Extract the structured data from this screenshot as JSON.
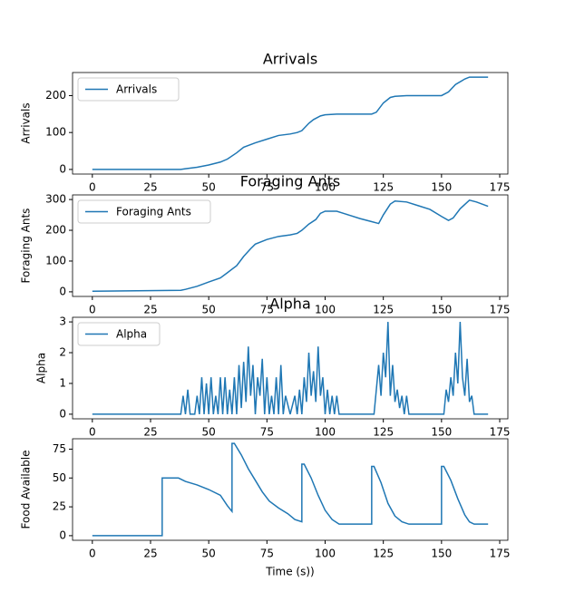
{
  "chart_data": [
    {
      "type": "line",
      "title": "Arrivals",
      "ylabel": "Arrivals",
      "x": [
        0,
        38,
        40,
        45,
        50,
        55,
        58,
        62,
        65,
        70,
        75,
        80,
        85,
        88,
        90,
        93,
        95,
        98,
        100,
        105,
        120,
        122,
        125,
        128,
        130,
        135,
        150,
        153,
        156,
        160,
        162,
        170
      ],
      "series": [
        {
          "name": "Arrivals",
          "color": "#1f77b4",
          "values": [
            0,
            0,
            2,
            6,
            12,
            20,
            28,
            45,
            60,
            72,
            82,
            92,
            96,
            100,
            105,
            125,
            135,
            145,
            148,
            150,
            150,
            155,
            180,
            195,
            198,
            200,
            200,
            210,
            230,
            245,
            250,
            250
          ]
        }
      ],
      "xlim": [
        -8.5,
        178.5
      ],
      "xticks": [
        0,
        25,
        50,
        75,
        100,
        125,
        150,
        175
      ],
      "ylim": [
        -12.5,
        262.5
      ],
      "yticks": [
        0,
        100,
        200
      ],
      "legend": "upper left"
    },
    {
      "type": "line",
      "title": "Foraging Ants",
      "ylabel": "Foraging Ants",
      "x": [
        0,
        38,
        40,
        45,
        50,
        55,
        58,
        62,
        65,
        68,
        70,
        75,
        80,
        85,
        88,
        90,
        93,
        96,
        98,
        100,
        105,
        110,
        115,
        120,
        123,
        125,
        128,
        130,
        135,
        140,
        145,
        150,
        153,
        155,
        158,
        162,
        165,
        170
      ],
      "series": [
        {
          "name": "Foraging Ants",
          "color": "#1f77b4",
          "values": [
            2,
            5,
            8,
            18,
            32,
            45,
            62,
            85,
            115,
            140,
            155,
            170,
            180,
            185,
            190,
            200,
            220,
            235,
            255,
            262,
            262,
            250,
            238,
            228,
            222,
            250,
            285,
            295,
            292,
            280,
            268,
            245,
            232,
            240,
            270,
            298,
            292,
            278
          ]
        }
      ],
      "xlim": [
        -8.5,
        178.5
      ],
      "xticks": [
        0,
        25,
        50,
        75,
        100,
        125,
        150,
        175
      ],
      "ylim": [
        -15,
        315
      ],
      "yticks": [
        0,
        100,
        200,
        300
      ],
      "legend": "upper left"
    },
    {
      "type": "line",
      "title": "Alpha",
      "ylabel": "Alpha",
      "x": [
        0,
        38,
        39,
        40,
        41,
        42,
        44,
        45,
        46,
        47,
        48,
        49,
        50,
        51,
        52,
        53,
        54,
        55,
        56,
        57,
        58,
        59,
        60,
        61,
        62,
        63,
        64,
        65,
        66,
        67,
        68,
        69,
        70,
        71,
        72,
        73,
        74,
        75,
        76,
        77,
        78,
        79,
        80,
        81,
        82,
        83,
        85,
        87,
        88,
        89,
        90,
        91,
        92,
        93,
        94,
        95,
        96,
        97,
        98,
        99,
        100,
        101,
        102,
        103,
        104,
        105,
        106,
        121,
        122,
        123,
        124,
        125,
        126,
        127,
        128,
        129,
        130,
        131,
        132,
        133,
        134,
        135,
        136,
        151,
        152,
        153,
        154,
        155,
        156,
        157,
        158,
        159,
        160,
        161,
        162,
        163,
        164,
        170
      ],
      "series": [
        {
          "name": "Alpha",
          "color": "#1f77b4",
          "values": [
            0,
            0,
            0.6,
            0,
            0.8,
            0,
            0,
            0.6,
            0,
            1.2,
            0,
            1,
            0,
            1.2,
            0,
            0.6,
            0,
            1.2,
            0,
            1.2,
            0,
            0.8,
            0,
            1.2,
            0,
            1.6,
            0.2,
            1.7,
            0.4,
            2.2,
            0.6,
            1.6,
            0,
            1.2,
            0.6,
            1.8,
            0,
            1.2,
            0,
            0.6,
            0,
            1.2,
            0,
            1.6,
            0,
            0.6,
            0,
            0.6,
            0,
            0.8,
            0,
            1.2,
            0.4,
            2,
            0.6,
            1.4,
            0.4,
            2.2,
            0.6,
            1.2,
            0,
            0.8,
            0,
            0.6,
            0,
            0.6,
            0,
            0,
            0.8,
            1.6,
            0.6,
            2,
            1.2,
            3,
            0.6,
            1.6,
            0.4,
            0.8,
            0.2,
            0.6,
            0,
            0.6,
            0,
            0,
            0.8,
            0.4,
            1.2,
            0.6,
            2,
            1,
            3,
            1.2,
            0.6,
            1.8,
            0.4,
            0.6,
            0,
            0
          ]
        }
      ],
      "xlim": [
        -8.5,
        178.5
      ],
      "xticks": [
        0,
        25,
        50,
        75,
        100,
        125,
        150,
        175
      ],
      "ylim": [
        -0.15,
        3.15
      ],
      "yticks": [
        0,
        1,
        2,
        3
      ],
      "legend": "upper left"
    },
    {
      "type": "line",
      "ylabel": "Food Available",
      "xlabel": "Time (s))",
      "x": [
        0,
        30,
        30,
        37,
        40,
        45,
        50,
        55,
        58,
        60,
        60,
        61,
        64,
        67,
        70,
        73,
        76,
        80,
        84,
        87,
        90,
        90,
        91,
        94,
        97,
        100,
        103,
        106,
        120,
        120,
        121,
        124,
        127,
        130,
        133,
        136,
        150,
        150,
        151,
        154,
        157,
        160,
        162,
        164,
        170
      ],
      "series": [
        {
          "name": "Food Available",
          "color": "#1f77b4",
          "values": [
            0,
            0,
            50,
            50,
            47,
            44,
            40,
            35,
            26,
            21,
            80,
            80,
            70,
            58,
            48,
            38,
            30,
            24,
            19,
            14,
            12,
            62,
            62,
            50,
            35,
            22,
            14,
            10,
            10,
            60,
            60,
            46,
            28,
            17,
            12,
            10,
            10,
            60,
            60,
            48,
            32,
            18,
            12,
            10,
            10
          ]
        }
      ],
      "xlim": [
        -8.5,
        178.5
      ],
      "xticks": [
        0,
        25,
        50,
        75,
        100,
        125,
        150,
        175
      ],
      "ylim": [
        -4,
        84
      ],
      "yticks": [
        0,
        25,
        50,
        75
      ]
    }
  ]
}
